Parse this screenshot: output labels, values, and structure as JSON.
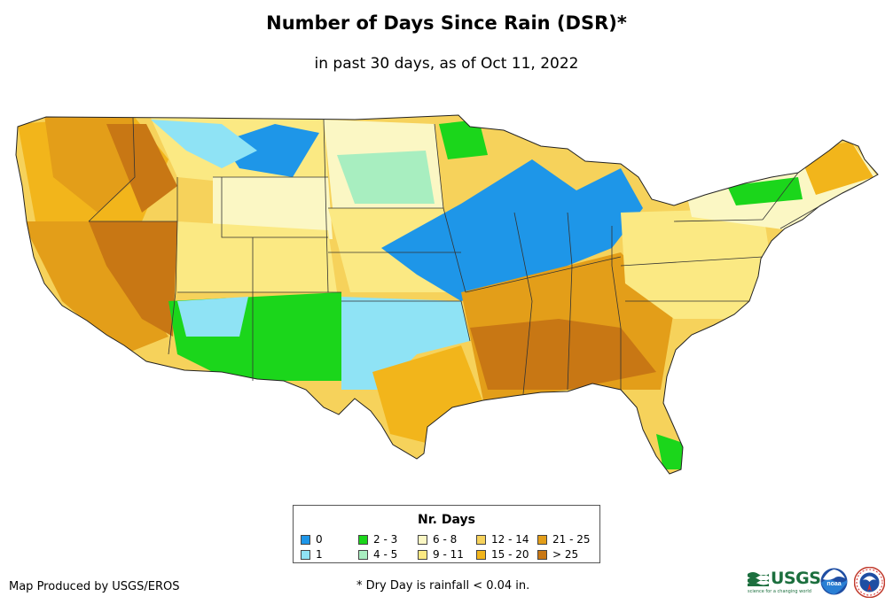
{
  "header": {
    "title": "Number of Days Since Rain (DSR)*",
    "subtitle": "in past 30 days, as of Oct 11, 2022"
  },
  "legend": {
    "title": "Nr. Days",
    "items": [
      {
        "label": "0",
        "color": "#1e96e8"
      },
      {
        "label": "1",
        "color": "#8fe3f5"
      },
      {
        "label": "2 - 3",
        "color": "#1bd61b"
      },
      {
        "label": "4 - 5",
        "color": "#a8eec0"
      },
      {
        "label": "6 - 8",
        "color": "#fbf7c4"
      },
      {
        "label": "9 - 11",
        "color": "#fbe983"
      },
      {
        "label": "12 - 14",
        "color": "#f6d25b"
      },
      {
        "label": "15 - 20",
        "color": "#f2b51b"
      },
      {
        "label": "21 - 25",
        "color": "#e39e19"
      },
      {
        "label": "> 25",
        "color": "#c87714"
      }
    ]
  },
  "footer": {
    "credit": "Map Produced by USGS/EROS",
    "footnote": "* Dry Day is rainfall < 0.04 in.",
    "usgs_logo": "USGS",
    "usgs_tagline": "science for a changing world",
    "noaa_logo": "noaa"
  },
  "icons": {
    "usgs": "usgs-logo-icon",
    "noaa": "noaa-logo-icon",
    "nws": "nws-logo-icon"
  }
}
